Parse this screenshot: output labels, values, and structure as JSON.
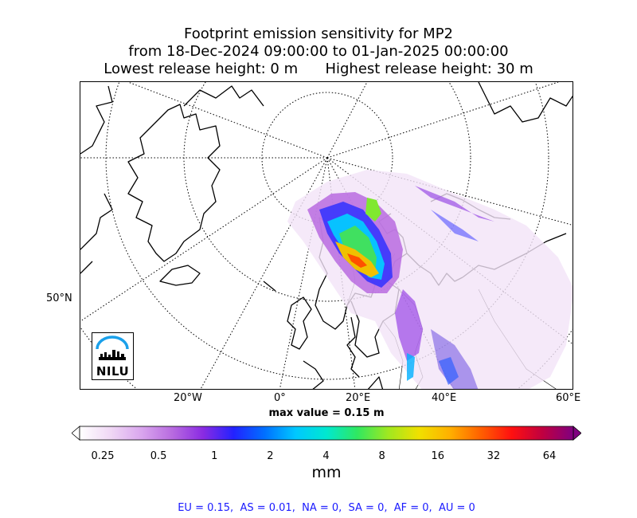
{
  "title": {
    "line1": "Footprint emission sensitivity for MP2",
    "line2": "from 18-Dec-2024 09:00:00 to 01-Jan-2025 00:00:00",
    "line3": "Lowest release height: 0 m      Highest release height: 30 m"
  },
  "map": {
    "lat_label": "50°N",
    "lon_labels": [
      "20°W",
      "0°",
      "20°E",
      "40°E",
      "60°E"
    ],
    "max_value_label": "max value = 0.15 m",
    "logo_text": "NILU"
  },
  "colorbar": {
    "tick_labels": [
      "0.25",
      "0.5",
      "1",
      "2",
      "4",
      "8",
      "16",
      "32",
      "64"
    ],
    "unit": "mm",
    "colors": [
      "#ffffff",
      "#f0d8f5",
      "#d9a6ee",
      "#b86be0",
      "#8a2be2",
      "#2222ff",
      "#0070ff",
      "#00c8ff",
      "#00e8d0",
      "#30e860",
      "#a0e820",
      "#f0e000",
      "#ffb000",
      "#ff6000",
      "#ff1010",
      "#c00040",
      "#800080"
    ]
  },
  "footer": {
    "text": "EU = 0.15,  AS = 0.01,  NA = 0,  SA = 0,  AF = 0,  AU = 0"
  },
  "chart_data": {
    "type": "heatmap",
    "title": "Footprint emission sensitivity for MP2",
    "subtitle": "from 18-Dec-2024 09:00:00 to 01-Jan-2025 00:00:00",
    "release_heights_m": [
      0,
      30
    ],
    "colorbar_ticks": [
      0.25,
      0.5,
      1,
      2,
      4,
      8,
      16,
      32,
      64
    ],
    "colorbar_unit": "mm",
    "max_value": "0.15 m",
    "region_totals": [
      {
        "region": "EU",
        "value": 0.15
      },
      {
        "region": "AS",
        "value": 0.01
      },
      {
        "region": "NA",
        "value": 0
      },
      {
        "region": "SA",
        "value": 0
      },
      {
        "region": "AF",
        "value": 0
      },
      {
        "region": "AU",
        "value": 0
      }
    ]
  }
}
